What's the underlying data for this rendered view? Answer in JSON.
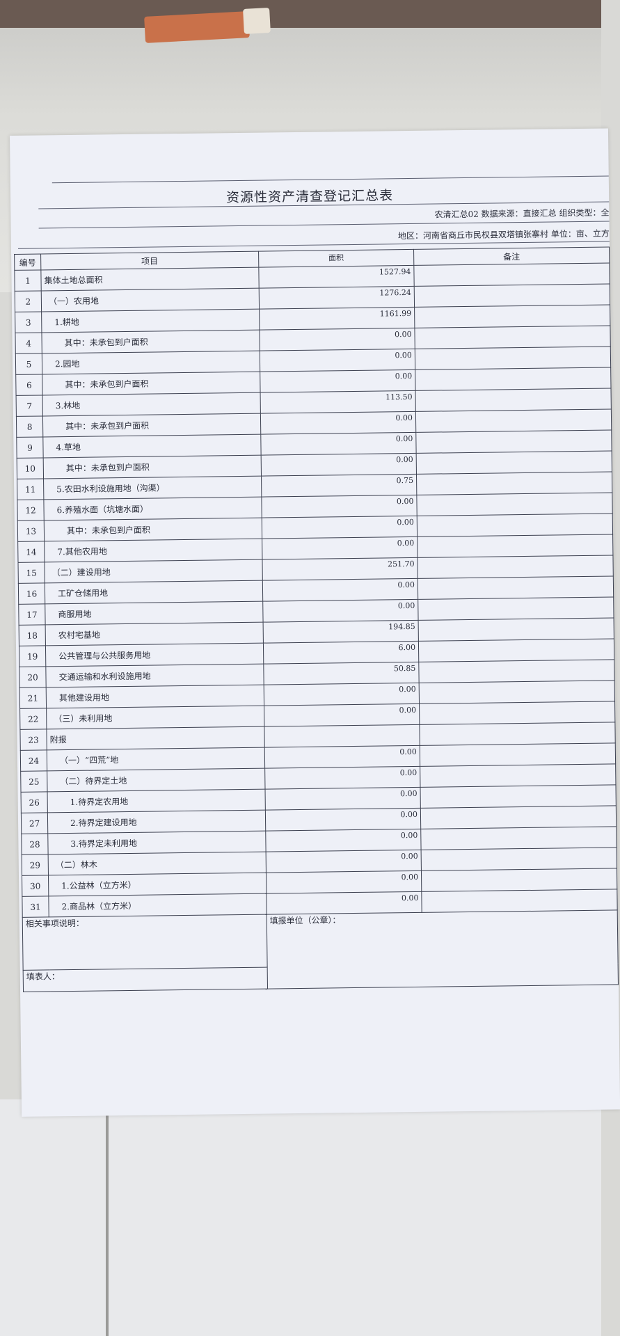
{
  "document": {
    "title": "资源性资产清查登记汇总表",
    "meta_line1": "农清汇总02  数据来源：直接汇总  组织类型：全",
    "meta_line2": "地区：河南省商丘市民权县双塔镇张寨村  单位：亩、立方",
    "headers": {
      "no": "编号",
      "item": "项目",
      "area": "面积",
      "note": "备注"
    },
    "rows": [
      {
        "no": "1",
        "item": "集体土地总面积",
        "area": "1527.94",
        "indent": 0
      },
      {
        "no": "2",
        "item": "（一）农用地",
        "area": "1276.24",
        "indent": 1
      },
      {
        "no": "3",
        "item": "1.耕地",
        "area": "1161.99",
        "indent": 2
      },
      {
        "no": "4",
        "item": "其中：未承包到户面积",
        "area": "0.00",
        "indent": 3
      },
      {
        "no": "5",
        "item": "2.园地",
        "area": "0.00",
        "indent": 2
      },
      {
        "no": "6",
        "item": "其中：未承包到户面积",
        "area": "0.00",
        "indent": 3
      },
      {
        "no": "7",
        "item": "3.林地",
        "area": "113.50",
        "indent": 2
      },
      {
        "no": "8",
        "item": "其中：未承包到户面积",
        "area": "0.00",
        "indent": 3
      },
      {
        "no": "9",
        "item": "4.草地",
        "area": "0.00",
        "indent": 2
      },
      {
        "no": "10",
        "item": "其中：未承包到户面积",
        "area": "0.00",
        "indent": 3
      },
      {
        "no": "11",
        "item": "5.农田水利设施用地（沟渠）",
        "area": "0.75",
        "indent": 2
      },
      {
        "no": "12",
        "item": "6.养殖水面（坑塘水面）",
        "area": "0.00",
        "indent": 2
      },
      {
        "no": "13",
        "item": "其中：未承包到户面积",
        "area": "0.00",
        "indent": 3
      },
      {
        "no": "14",
        "item": "7.其他农用地",
        "area": "0.00",
        "indent": 2
      },
      {
        "no": "15",
        "item": "（二）建设用地",
        "area": "251.70",
        "indent": 1
      },
      {
        "no": "16",
        "item": "工矿仓储用地",
        "area": "0.00",
        "indent": 2
      },
      {
        "no": "17",
        "item": "商服用地",
        "area": "0.00",
        "indent": 2
      },
      {
        "no": "18",
        "item": "农村宅基地",
        "area": "194.85",
        "indent": 2
      },
      {
        "no": "19",
        "item": "公共管理与公共服务用地",
        "area": "6.00",
        "indent": 2
      },
      {
        "no": "20",
        "item": "交通运输和水利设施用地",
        "area": "50.85",
        "indent": 2
      },
      {
        "no": "21",
        "item": "其他建设用地",
        "area": "0.00",
        "indent": 2
      },
      {
        "no": "22",
        "item": "（三）未利用地",
        "area": "0.00",
        "indent": 1
      },
      {
        "no": "23",
        "item": "附报",
        "area": "",
        "indent": 0
      },
      {
        "no": "24",
        "item": "（一）“四荒”地",
        "area": "0.00",
        "indent": 2
      },
      {
        "no": "25",
        "item": "（二）待界定土地",
        "area": "0.00",
        "indent": 2
      },
      {
        "no": "26",
        "item": "1.待界定农用地",
        "area": "0.00",
        "indent": 3
      },
      {
        "no": "27",
        "item": "2.待界定建设用地",
        "area": "0.00",
        "indent": 3
      },
      {
        "no": "28",
        "item": "3.待界定未利用地",
        "area": "0.00",
        "indent": 3
      },
      {
        "no": "29",
        "item": "（二）林木",
        "area": "0.00",
        "indent": 1
      },
      {
        "no": "30",
        "item": "1.公益林（立方米）",
        "area": "0.00",
        "indent": 2
      },
      {
        "no": "31",
        "item": "2.商品林（立方米）",
        "area": "0.00",
        "indent": 2
      }
    ],
    "footer": {
      "notes_label": "相关事项说明：",
      "unit_label": "填报单位（公章）：",
      "filler_label": "填表人："
    }
  }
}
